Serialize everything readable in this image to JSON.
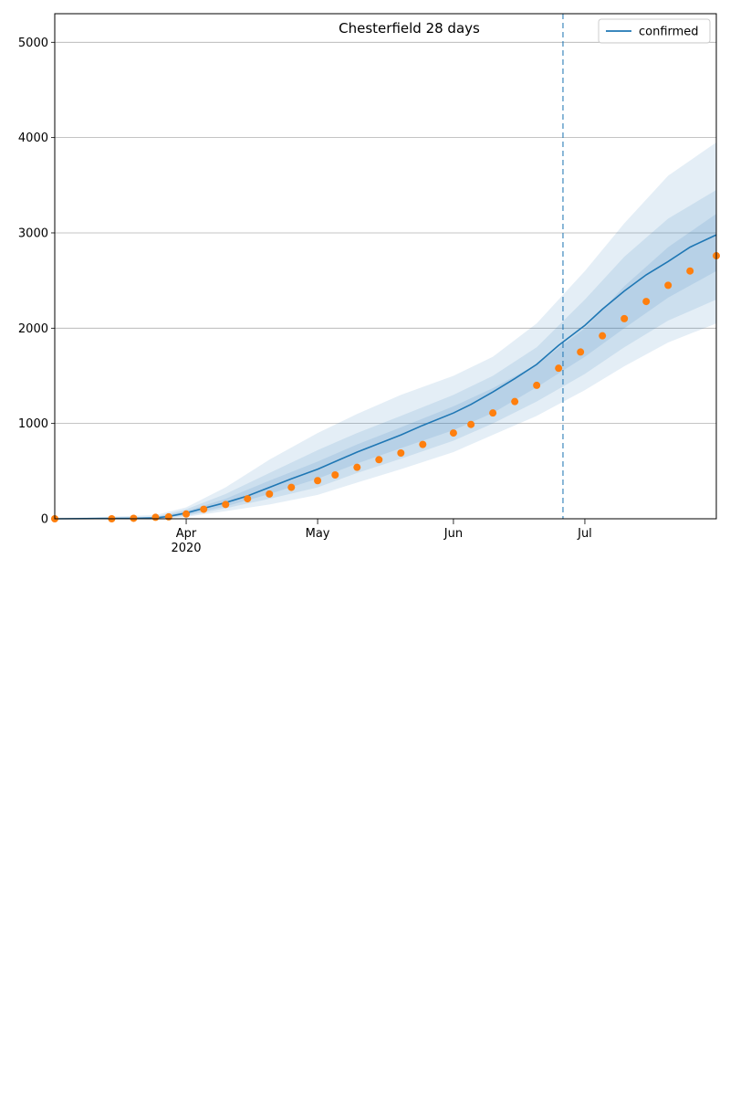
{
  "colors": {
    "line": "#1f77b4",
    "points": "#ff7f0e",
    "band": "#1f77b4",
    "grid": "#b0b0b0",
    "vline": "#1f77b4"
  },
  "chart_data": [
    {
      "type": "line",
      "title": "Chesterfield 28 days",
      "xlabel": "",
      "ylabel": "",
      "grid": "horizontal",
      "legend": {
        "entries": [
          "confirmed"
        ],
        "placement": "top-right"
      },
      "x_range": [
        "2020-03-02",
        "2020-07-31"
      ],
      "ylim": [
        0,
        5300
      ],
      "yticks": [
        0,
        1000,
        2000,
        3000,
        4000,
        5000
      ],
      "xticks_major": [
        {
          "date": "2020-04-01",
          "label": "Apr"
        },
        {
          "date": "2020-05-01",
          "label": "May"
        },
        {
          "date": "2020-06-01",
          "label": "Jun"
        },
        {
          "date": "2020-07-01",
          "label": "Jul"
        }
      ],
      "x_year_label": "2020",
      "vline_date": "2020-06-26",
      "median": [
        [
          "2020-03-02",
          0
        ],
        [
          "2020-03-20",
          5
        ],
        [
          "2020-03-25",
          10
        ],
        [
          "2020-03-28",
          25
        ],
        [
          "2020-04-01",
          60
        ],
        [
          "2020-04-05",
          110
        ],
        [
          "2020-04-10",
          170
        ],
        [
          "2020-04-15",
          240
        ],
        [
          "2020-04-20",
          330
        ],
        [
          "2020-04-25",
          420
        ],
        [
          "2020-05-01",
          520
        ],
        [
          "2020-05-05",
          600
        ],
        [
          "2020-05-10",
          700
        ],
        [
          "2020-05-15",
          790
        ],
        [
          "2020-05-20",
          880
        ],
        [
          "2020-05-25",
          980
        ],
        [
          "2020-06-01",
          1110
        ],
        [
          "2020-06-05",
          1200
        ],
        [
          "2020-06-10",
          1330
        ],
        [
          "2020-06-15",
          1470
        ],
        [
          "2020-06-20",
          1620
        ],
        [
          "2020-06-25",
          1820
        ],
        [
          "2020-07-01",
          2030
        ],
        [
          "2020-07-05",
          2200
        ],
        [
          "2020-07-10",
          2390
        ],
        [
          "2020-07-15",
          2560
        ],
        [
          "2020-07-20",
          2700
        ],
        [
          "2020-07-25",
          2850
        ],
        [
          "2020-07-31",
          2980
        ]
      ],
      "bands": [
        {
          "upper": [
            [
              "2020-03-02",
              0
            ],
            [
              "2020-03-25",
              40
            ],
            [
              "2020-04-01",
              120
            ],
            [
              "2020-04-10",
              330
            ],
            [
              "2020-04-20",
              620
            ],
            [
              "2020-05-01",
              900
            ],
            [
              "2020-05-10",
              1100
            ],
            [
              "2020-05-20",
              1300
            ],
            [
              "2020-06-01",
              1500
            ],
            [
              "2020-06-10",
              1700
            ],
            [
              "2020-06-20",
              2050
            ],
            [
              "2020-07-01",
              2600
            ],
            [
              "2020-07-10",
              3100
            ],
            [
              "2020-07-20",
              3600
            ],
            [
              "2020-07-31",
              3950
            ]
          ],
          "lower": [
            [
              "2020-03-02",
              0
            ],
            [
              "2020-03-25",
              0
            ],
            [
              "2020-04-01",
              20
            ],
            [
              "2020-04-10",
              80
            ],
            [
              "2020-04-20",
              150
            ],
            [
              "2020-05-01",
              250
            ],
            [
              "2020-05-10",
              380
            ],
            [
              "2020-05-20",
              520
            ],
            [
              "2020-06-01",
              700
            ],
            [
              "2020-06-10",
              880
            ],
            [
              "2020-06-20",
              1080
            ],
            [
              "2020-07-01",
              1350
            ],
            [
              "2020-07-10",
              1600
            ],
            [
              "2020-07-20",
              1850
            ],
            [
              "2020-07-31",
              2050
            ]
          ]
        },
        {
          "upper": [
            [
              "2020-03-02",
              0
            ],
            [
              "2020-03-25",
              20
            ],
            [
              "2020-04-01",
              100
            ],
            [
              "2020-04-10",
              260
            ],
            [
              "2020-04-20",
              480
            ],
            [
              "2020-05-01",
              720
            ],
            [
              "2020-05-10",
              900
            ],
            [
              "2020-05-20",
              1080
            ],
            [
              "2020-06-01",
              1300
            ],
            [
              "2020-06-10",
              1500
            ],
            [
              "2020-06-20",
              1800
            ],
            [
              "2020-07-01",
              2300
            ],
            [
              "2020-07-10",
              2750
            ],
            [
              "2020-07-20",
              3150
            ],
            [
              "2020-07-31",
              3450
            ]
          ],
          "lower": [
            [
              "2020-03-02",
              0
            ],
            [
              "2020-03-25",
              0
            ],
            [
              "2020-04-01",
              30
            ],
            [
              "2020-04-10",
              110
            ],
            [
              "2020-04-20",
              210
            ],
            [
              "2020-05-01",
              330
            ],
            [
              "2020-05-10",
              480
            ],
            [
              "2020-05-20",
              630
            ],
            [
              "2020-06-01",
              820
            ],
            [
              "2020-06-10",
              1000
            ],
            [
              "2020-06-20",
              1230
            ],
            [
              "2020-07-01",
              1520
            ],
            [
              "2020-07-10",
              1800
            ],
            [
              "2020-07-20",
              2080
            ],
            [
              "2020-07-31",
              2300
            ]
          ]
        },
        {
          "upper": [
            [
              "2020-03-02",
              0
            ],
            [
              "2020-03-25",
              15
            ],
            [
              "2020-04-01",
              80
            ],
            [
              "2020-04-10",
              210
            ],
            [
              "2020-04-20",
              400
            ],
            [
              "2020-05-01",
              600
            ],
            [
              "2020-05-10",
              780
            ],
            [
              "2020-05-20",
              960
            ],
            [
              "2020-06-01",
              1180
            ],
            [
              "2020-06-10",
              1370
            ],
            [
              "2020-06-20",
              1620
            ],
            [
              "2020-07-01",
              2000
            ],
            [
              "2020-07-10",
              2440
            ],
            [
              "2020-07-20",
              2850
            ],
            [
              "2020-07-31",
              3200
            ]
          ],
          "lower": [
            [
              "2020-03-02",
              0
            ],
            [
              "2020-03-25",
              5
            ],
            [
              "2020-04-01",
              40
            ],
            [
              "2020-04-10",
              130
            ],
            [
              "2020-04-20",
              260
            ],
            [
              "2020-05-01",
              420
            ],
            [
              "2020-05-10",
              580
            ],
            [
              "2020-05-20",
              740
            ],
            [
              "2020-06-01",
              930
            ],
            [
              "2020-06-10",
              1110
            ],
            [
              "2020-06-20",
              1380
            ],
            [
              "2020-07-01",
              1700
            ],
            [
              "2020-07-10",
              2000
            ],
            [
              "2020-07-20",
              2320
            ],
            [
              "2020-07-31",
              2600
            ]
          ]
        }
      ],
      "observed": [
        [
          "2020-03-02",
          0
        ],
        [
          "2020-03-15",
          0
        ],
        [
          "2020-03-20",
          5
        ],
        [
          "2020-03-25",
          15
        ],
        [
          "2020-03-28",
          20
        ],
        [
          "2020-04-01",
          50
        ],
        [
          "2020-04-05",
          100
        ],
        [
          "2020-04-10",
          150
        ],
        [
          "2020-04-15",
          210
        ],
        [
          "2020-04-20",
          260
        ],
        [
          "2020-04-25",
          330
        ],
        [
          "2020-05-01",
          400
        ],
        [
          "2020-05-05",
          460
        ],
        [
          "2020-05-10",
          540
        ],
        [
          "2020-05-15",
          620
        ],
        [
          "2020-05-20",
          690
        ],
        [
          "2020-05-25",
          780
        ],
        [
          "2020-06-01",
          900
        ],
        [
          "2020-06-05",
          990
        ],
        [
          "2020-06-10",
          1110
        ],
        [
          "2020-06-15",
          1230
        ],
        [
          "2020-06-20",
          1400
        ],
        [
          "2020-06-25",
          1580
        ],
        [
          "2020-06-30",
          1750
        ],
        [
          "2020-07-05",
          1920
        ],
        [
          "2020-07-10",
          2100
        ],
        [
          "2020-07-15",
          2280
        ],
        [
          "2020-07-20",
          2450
        ],
        [
          "2020-07-25",
          2600
        ],
        [
          "2020-07-31",
          2760
        ]
      ]
    }
  ]
}
